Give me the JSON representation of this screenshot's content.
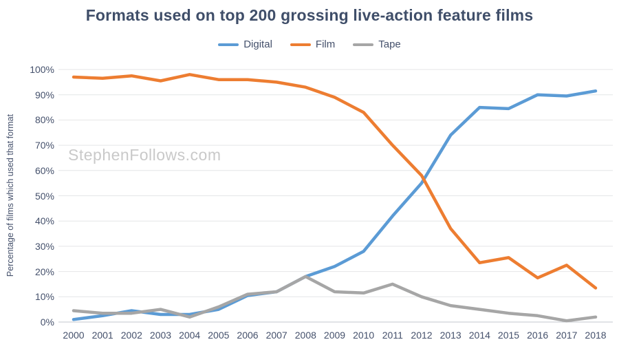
{
  "chart_data": {
    "type": "line",
    "title": "Formats used on top 200 grossing live-action feature films",
    "ylabel": "Percentage of films which used that format",
    "xlabel": "",
    "watermark": "StephenFollows.com",
    "x": [
      2000,
      2001,
      2002,
      2003,
      2004,
      2005,
      2006,
      2007,
      2008,
      2009,
      2010,
      2011,
      2012,
      2013,
      2014,
      2015,
      2016,
      2017,
      2018
    ],
    "series": [
      {
        "name": "Digital",
        "color": "#5b9bd5",
        "values": [
          1,
          2.5,
          4.5,
          3,
          3,
          5,
          10.5,
          12,
          18,
          22,
          28,
          42,
          55,
          74,
          85,
          84.5,
          90,
          89.5,
          91.5
        ]
      },
      {
        "name": "Film",
        "color": "#ed7d31",
        "values": [
          97,
          96.5,
          97.5,
          95.5,
          98,
          96,
          96,
          95,
          93,
          89,
          83,
          70,
          58,
          37,
          23.5,
          25.5,
          17.5,
          22.5,
          13.5
        ]
      },
      {
        "name": "Tape",
        "color": "#a6a6a6",
        "values": [
          4.5,
          3.5,
          3.5,
          5,
          2,
          6,
          11,
          12,
          18,
          12,
          11.5,
          15,
          10,
          6.5,
          5,
          3.5,
          2.5,
          0.5,
          2
        ]
      }
    ],
    "ylim": [
      0,
      100
    ],
    "ytick_step": 10,
    "ytick_suffix": "%",
    "grid": "horizontal",
    "legend_position": "top"
  },
  "colors": {
    "title_text": "#3f4e69",
    "axis_text": "#44506b",
    "gridline": "#e4e5e7",
    "axis_line": "#c3c7cc",
    "watermark": "#c9c9c9",
    "background": "#ffffff"
  }
}
